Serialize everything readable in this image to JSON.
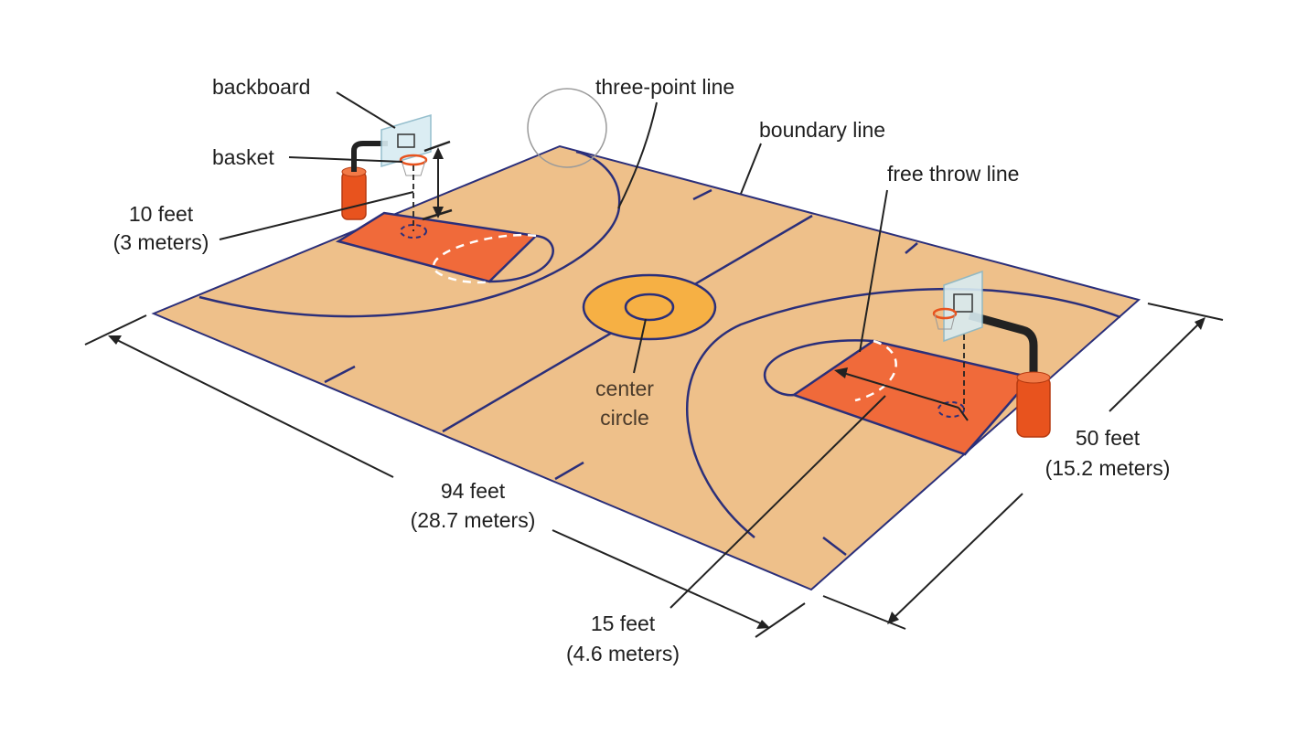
{
  "labels": {
    "backboard": "backboard",
    "basket": "basket",
    "height_line1": "10 feet",
    "height_line2": "(3 meters)",
    "three_point_line": "three-point line",
    "boundary_line": "boundary line",
    "free_throw_line": "free throw line",
    "center_circle_line1": "center",
    "center_circle_line2": "circle",
    "length_line1": "94 feet",
    "length_line2": "(28.7 meters)",
    "width_line1": "50 feet",
    "width_line2": "(15.2 meters)",
    "free_throw_distance_line1": "15 feet",
    "free_throw_distance_line2": "(4.6 meters)"
  },
  "colors": {
    "court_floor": "#eec08a",
    "court_lines": "#2b2f7a",
    "key_paint": "#f06a3a",
    "center_circle": "#f6b044",
    "pole": "#e8531e",
    "backboard": "#d8ecf2"
  }
}
